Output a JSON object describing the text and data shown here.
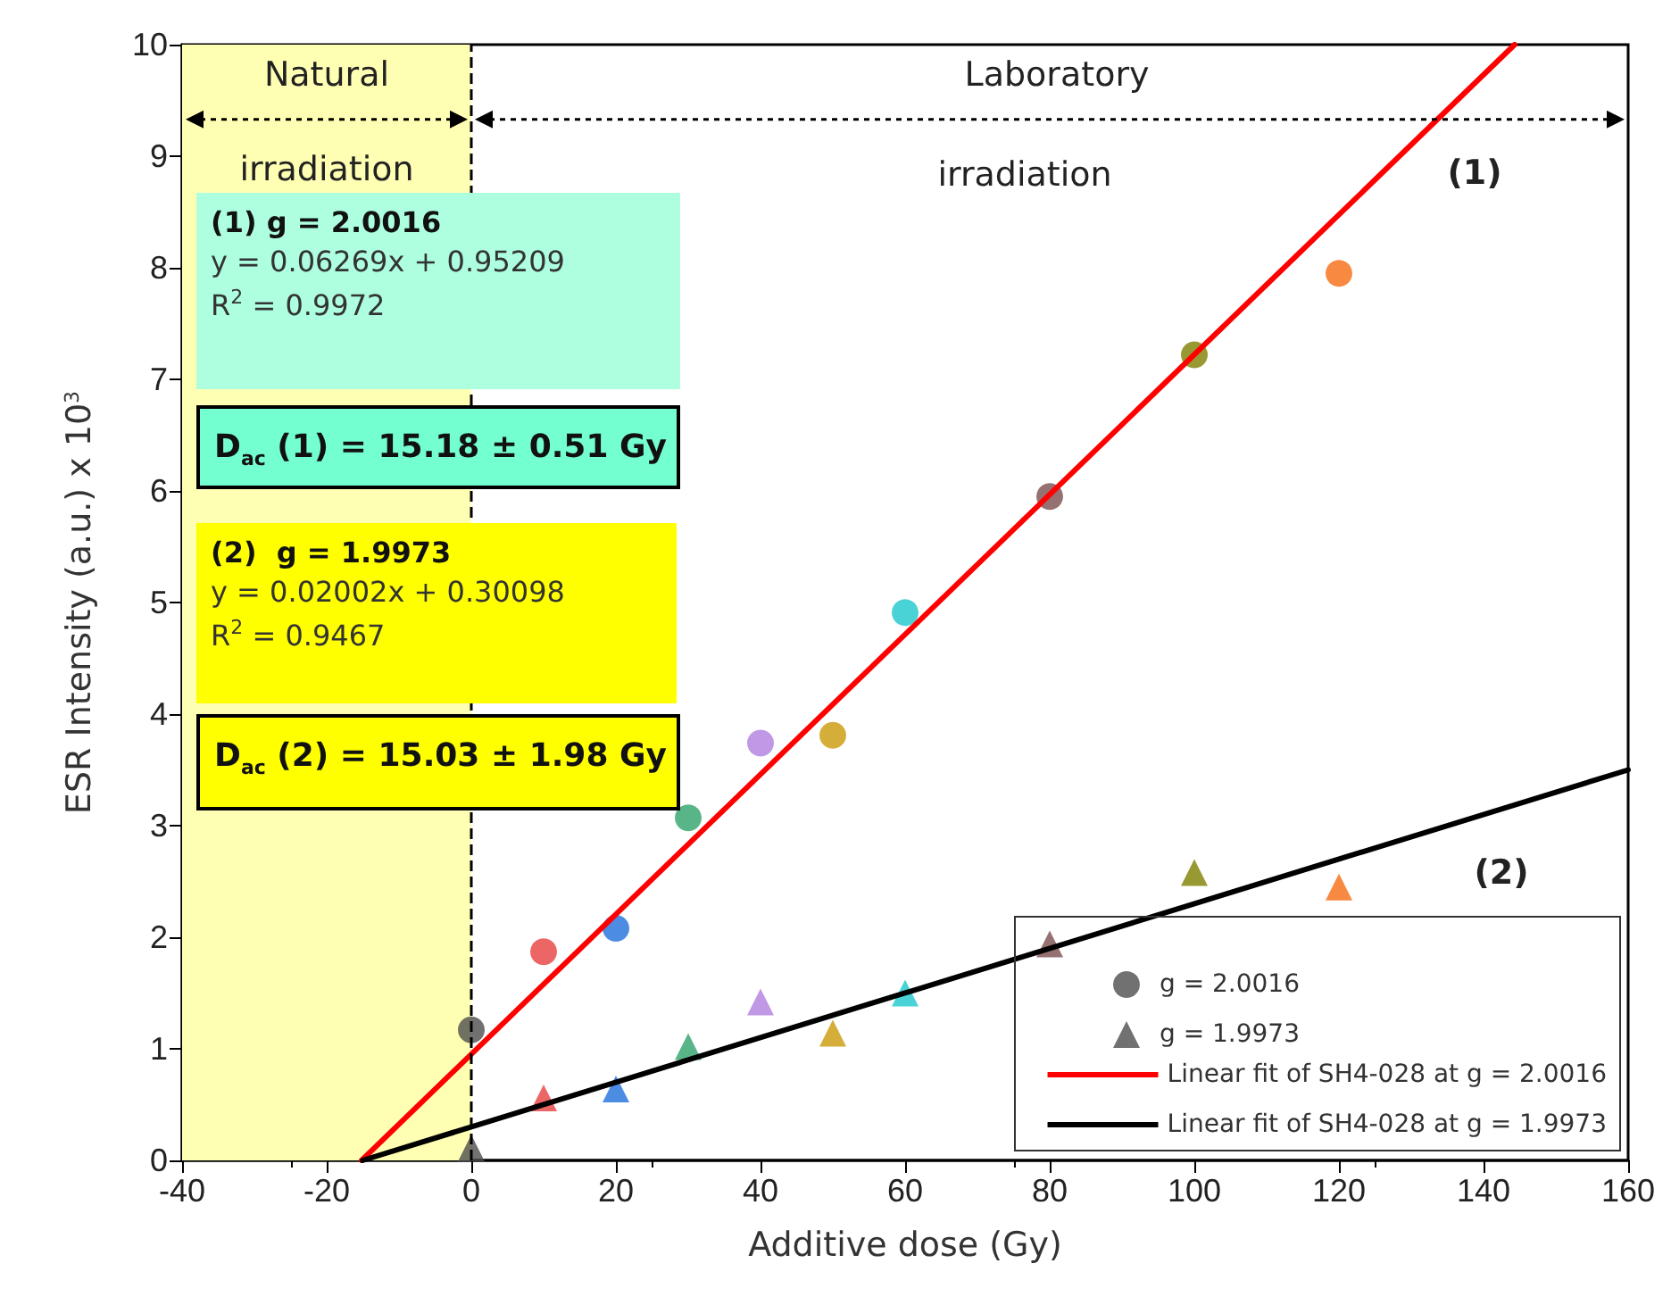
{
  "chart_data": {
    "type": "scatter",
    "xlabel": "Additive dose (Gy)",
    "ylabel": "ESR Intensity (a.u.) x 10$^{3}$",
    "xlim": [
      -40,
      160
    ],
    "xticks": [
      -40,
      -20,
      0,
      20,
      40,
      60,
      80,
      100,
      120,
      140,
      160
    ],
    "ylim": [
      0,
      10
    ],
    "yticks": [
      0,
      1,
      2,
      3,
      4,
      5,
      6,
      7,
      8,
      9,
      10
    ],
    "grid": false,
    "legend": "bottom right",
    "series": [
      {
        "name": "g = 2.0016",
        "type": "scatter",
        "marker": "circle",
        "x": [
          0,
          10,
          20,
          30,
          40,
          50,
          60,
          80,
          100,
          120
        ],
        "values": [
          1.17,
          1.87,
          2.08,
          3.07,
          3.74,
          3.81,
          4.91,
          5.95,
          7.22,
          7.95
        ],
        "colors": [
          "#4d4d4d",
          "#e84040",
          "#1f6fdb",
          "#2ea36a",
          "#b07ee0",
          "#c99a06",
          "#1cc8cc",
          "#7a4e4e",
          "#808000",
          "#f56c12"
        ]
      },
      {
        "name": "g = 1.9973",
        "type": "scatter",
        "marker": "triangle",
        "x": [
          0,
          10,
          20,
          30,
          40,
          50,
          60,
          80,
          100,
          120
        ],
        "values": [
          0.11,
          0.56,
          0.64,
          1.02,
          1.42,
          1.14,
          1.5,
          1.94,
          2.58,
          2.45
        ],
        "colors": [
          "#4d4d4d",
          "#e84040",
          "#1f6fdb",
          "#2ea36a",
          "#b07ee0",
          "#c99a06",
          "#1cc8cc",
          "#7a4e4e",
          "#808000",
          "#f56c12"
        ]
      },
      {
        "name": "Linear fit of SH4-028 at g = 2.0016",
        "type": "line",
        "marker": "none",
        "line_style": "solid",
        "color": "#ff0000",
        "x": [
          -15.18,
          144.3
        ],
        "values": [
          0,
          10
        ]
      },
      {
        "name": "Linear fit of SH4-028 at g = 1.9973",
        "type": "line",
        "marker": "none",
        "line_style": "solid",
        "color": "#000000",
        "x": [
          -15.03,
          160
        ],
        "values": [
          0,
          3.5
        ]
      }
    ],
    "bands": [
      {
        "axis": "x",
        "from": -40,
        "to": 0,
        "color": "#ffffb3"
      }
    ],
    "ref_lines": [
      {
        "axis": "x",
        "value": 0,
        "color": "#000000",
        "line_style": "dashed"
      }
    ],
    "annotations": [
      "Natural",
      "irradiation",
      "Laboratory",
      "irradiation",
      "(1)",
      "(2)",
      "(1) g = 2.0016\ny = 0.06269x + 0.95209\nR$^{2}$ = 0.9972",
      "D$_{ac}$ (1) = 15.18 ± 0.51 Gy",
      "(2)  g = 1.9973\ny = 0.02002x + 0.30098\nR$^{2}$ = 0.9467",
      "D$_{ac}$ (2) = 15.03 ± 1.98 Gy"
    ]
  }
}
